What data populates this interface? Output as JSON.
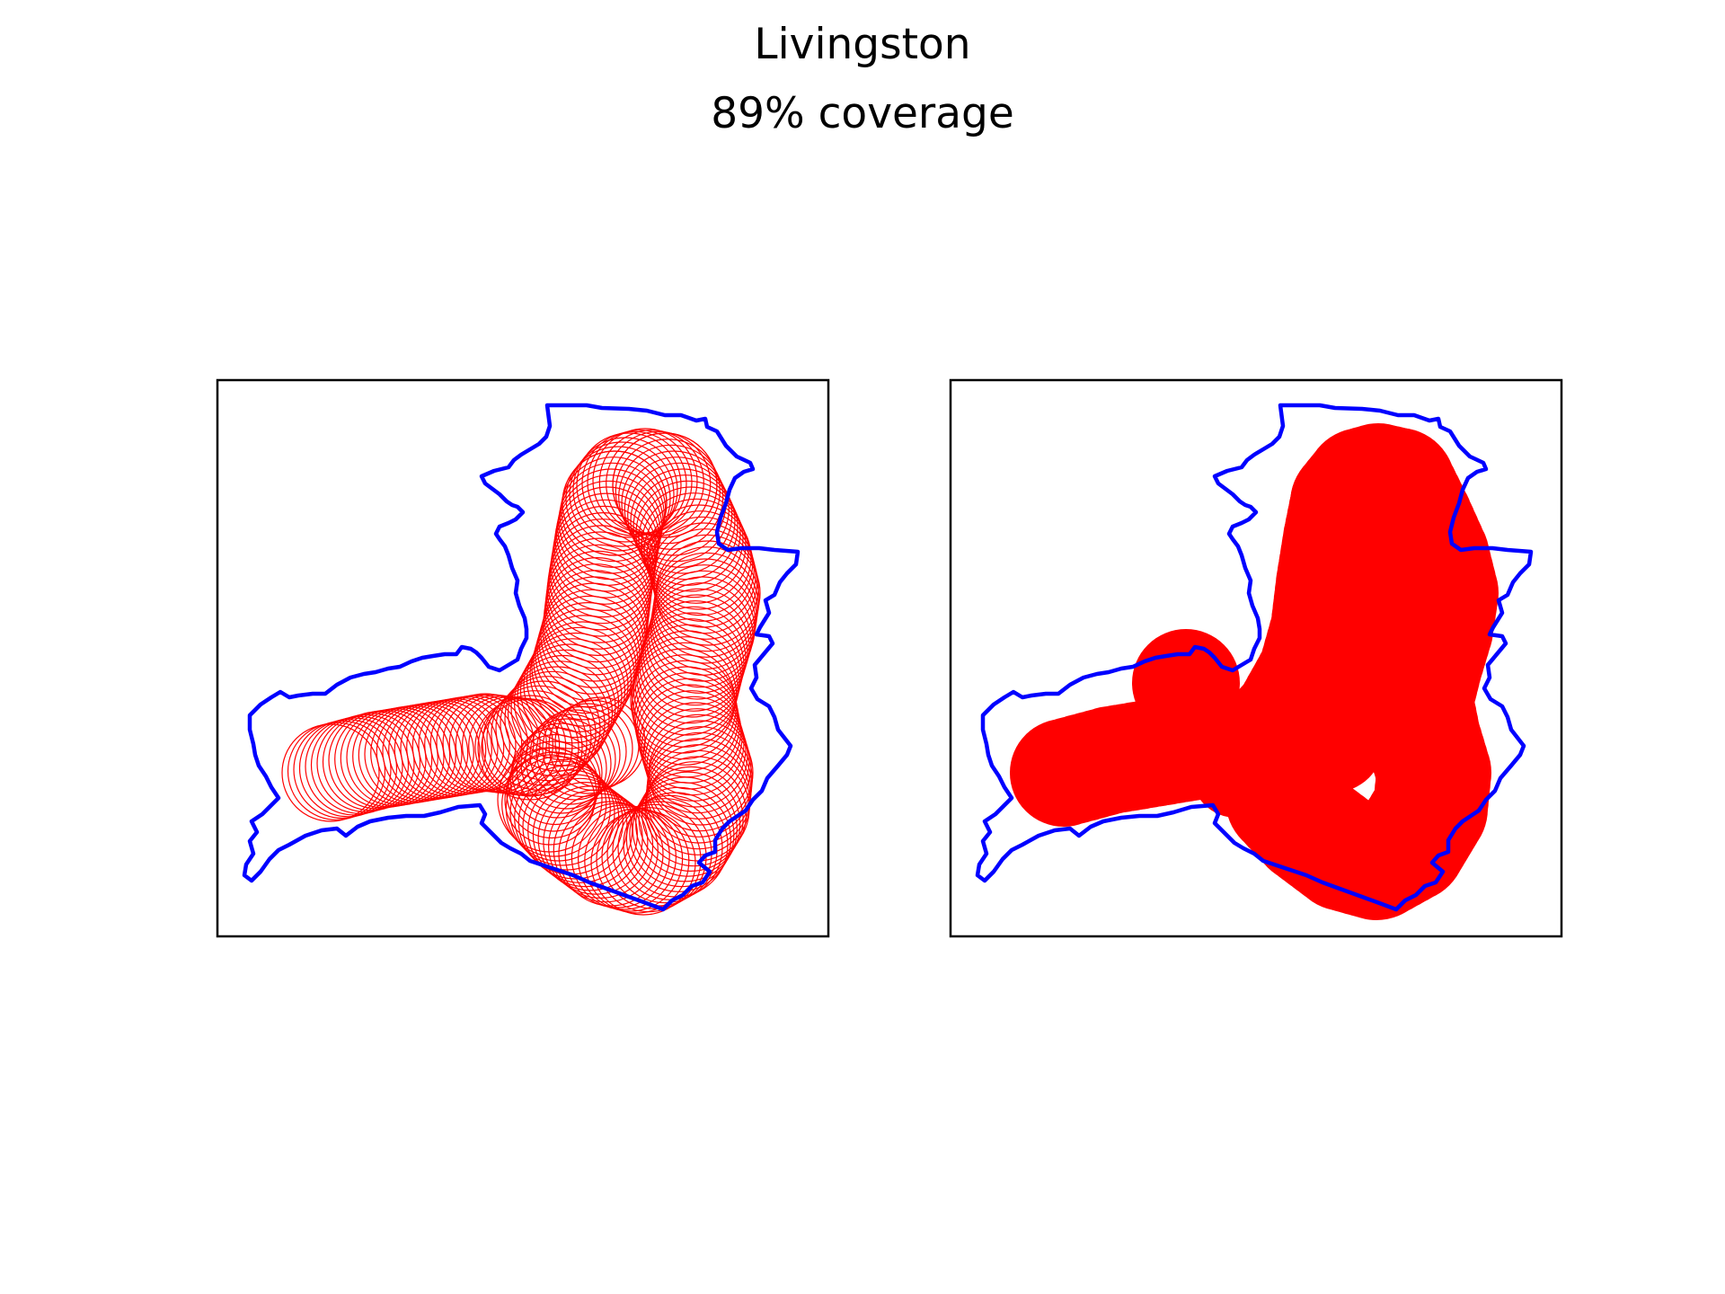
{
  "figure": {
    "title": "Livingston",
    "subtitle": "89% coverage"
  },
  "colors": {
    "boundary": "#0000ff",
    "coverage": "#ff0000",
    "frame": "#000000",
    "background": "#ffffff"
  },
  "panels": [
    {
      "name": "left-panel",
      "style": "circle-outlines"
    },
    {
      "name": "right-panel",
      "style": "filled-union"
    }
  ]
}
